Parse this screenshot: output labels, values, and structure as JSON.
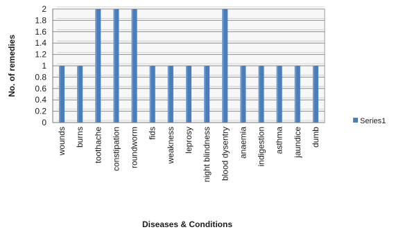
{
  "chart_data": {
    "type": "bar",
    "title": "",
    "xlabel": "Diseases & Conditions",
    "ylabel": "No. of remedies",
    "ylim": [
      0,
      2
    ],
    "yticks": [
      "0",
      "0.2",
      "0.4",
      "0.6",
      "0.8",
      "1",
      "1.2",
      "1.4",
      "1.6",
      "1.8",
      "2"
    ],
    "grid": true,
    "legend_position": "right",
    "categories": [
      "wounds",
      "burns",
      "toothache",
      "constipation",
      "roundworm",
      "fids",
      "weakness",
      "leprosy",
      "night blindness",
      "blood dysentry",
      "anaemia",
      "indigestion",
      "asthma",
      "jaundice",
      "dumb"
    ],
    "series": [
      {
        "name": "Series1",
        "color": "#4a7ebb",
        "values": [
          1,
          1,
          2,
          2,
          2,
          1,
          1,
          1,
          1,
          2,
          1,
          1,
          1,
          1,
          1
        ]
      }
    ]
  }
}
